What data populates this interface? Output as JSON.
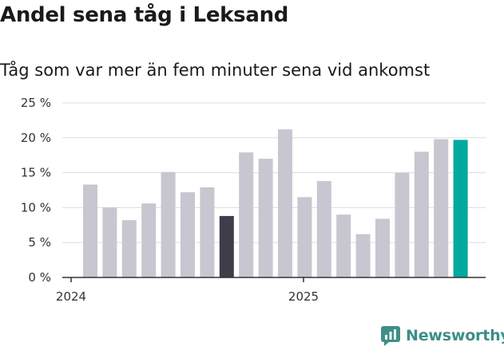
{
  "title": "Andel sena tåg i Leksand",
  "subtitle": "Tåg som var mer än fem minuter sena vid ankomst",
  "brand": "Newsworthy",
  "colors": {
    "bar_default": "#c8c6d0",
    "bar_dark": "#3f3d4a",
    "bar_latest": "#00a99d",
    "brand": "#3c8f87"
  },
  "chart_data": {
    "type": "bar",
    "title": "Andel sena tåg i Leksand",
    "subtitle": "Tåg som var mer än fem minuter sena vid ankomst",
    "ylabel": "",
    "xlabel": "",
    "ylim": [
      0,
      25
    ],
    "y_ticks": [
      0,
      5,
      10,
      15,
      20,
      25
    ],
    "y_tick_labels": [
      "0 %",
      "5 %",
      "10 %",
      "15 %",
      "20 %",
      "25 %"
    ],
    "x_tick_labels": [
      {
        "label": "2024",
        "at_index": 0
      },
      {
        "label": "2025",
        "at_index": 12
      }
    ],
    "grid": true,
    "values": [
      13.3,
      10.0,
      8.2,
      10.6,
      15.1,
      12.2,
      12.9,
      8.8,
      17.9,
      17.0,
      21.2,
      11.5,
      13.8,
      9.0,
      6.2,
      8.4,
      15.0,
      18.0,
      19.8,
      19.7
    ],
    "highlight": [
      {
        "index": 7,
        "color_key": "bar_dark"
      },
      {
        "index": 19,
        "color_key": "bar_latest"
      }
    ]
  }
}
